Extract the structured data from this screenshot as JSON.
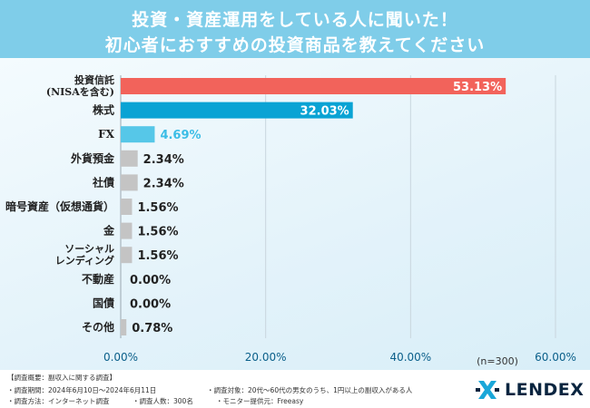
{
  "header": {
    "line1": "投資・資産運用をしている人に聞いた！",
    "line2": "初心者におすすめの投資商品を教えてください"
  },
  "colors": {
    "header_bg": "#7fcde9",
    "bar_top": "#f2635b",
    "bar_second": "#0aa3d4",
    "bar_third": "#56c7e8",
    "bar_other": "#c4c4c4"
  },
  "chart_data": {
    "type": "bar",
    "orientation": "horizontal",
    "categories": [
      "投資信託\n(NISAを含む)",
      "株式",
      "FX",
      "外貨預金",
      "社債",
      "暗号資産（仮想通貨）",
      "金",
      "ソーシャル\nレンディング",
      "不動産",
      "国債",
      "その他"
    ],
    "values": [
      53.13,
      32.03,
      4.69,
      2.34,
      2.34,
      1.56,
      1.56,
      1.56,
      0.0,
      0.0,
      0.78
    ],
    "value_labels": [
      "53.13%",
      "32.03%",
      "4.69%",
      "2.34%",
      "2.34%",
      "1.56%",
      "1.56%",
      "1.56%",
      "0.00%",
      "0.00%",
      "0.78%"
    ],
    "xlim": [
      0,
      60
    ],
    "xticks": [
      "0.00%",
      "20.00%",
      "40.00%",
      "60.00%"
    ],
    "xtick_values": [
      0,
      20,
      40,
      60
    ],
    "sample_note": "(n=300)",
    "grid": true
  },
  "footer": {
    "title": "【調査概要：副収入に関する調査】",
    "period": "・調査期間：2024年6月10日〜2024年6月11日",
    "target": "・調査対象：20代〜60代の男女のうち、1円以上の副収入がある人",
    "method": "・調査方法：インターネット調査",
    "count": "・調査人数：300名",
    "provider": "・モニター提供元：Freeasy"
  },
  "logo": {
    "text": "LENDEX",
    "icon": "lendex-x-mark-icon"
  }
}
